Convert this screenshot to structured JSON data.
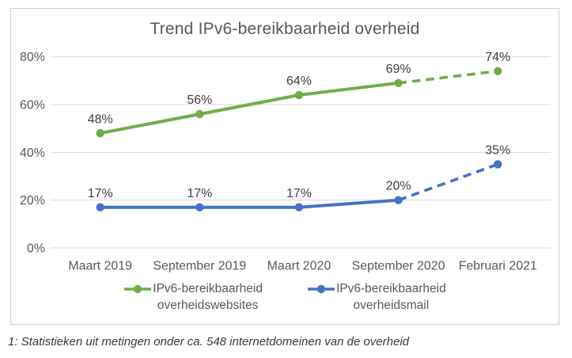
{
  "footnote": "1: Statistieken uit metingen onder ca. 548 internetdomeinen van de overheid",
  "colors": {
    "series_websites": "#70ad47",
    "series_mail": "#4472c4",
    "gridline": "#d9d9d9",
    "axis_text": "#595959",
    "data_label_text": "#404040",
    "chart_border": "#cfcfcf"
  },
  "chart_data": {
    "type": "line",
    "title": "Trend IPv6-bereikbaarheid overheid",
    "categories": [
      "Maart 2019",
      "September 2019",
      "Maart 2020",
      "September 2020",
      "Februari 2021"
    ],
    "series": [
      {
        "name": "IPv6-bereikbaarheid overheidswebsites",
        "slug": "overheidswebsites",
        "legend_lines": [
          "IPv6-bereikbaarheid",
          "overheidswebsites"
        ],
        "values": [
          48,
          56,
          64,
          69,
          74
        ],
        "data_labels": [
          "48%",
          "56%",
          "64%",
          "69%",
          "74%"
        ],
        "color": "#70ad47",
        "dashed_from_index": 3
      },
      {
        "name": "IPv6-bereikbaarheid overheidsmail",
        "slug": "overheidsmail",
        "legend_lines": [
          "IPv6-bereikbaarheid",
          "overheidsmail"
        ],
        "values": [
          17,
          17,
          17,
          20,
          35
        ],
        "data_labels": [
          "17%",
          "17%",
          "17%",
          "20%",
          "35%"
        ],
        "color": "#4472c4",
        "dashed_from_index": 3
      }
    ],
    "y_axis": {
      "tick_values": [
        0,
        20,
        40,
        60,
        80
      ],
      "tick_labels": [
        "0%",
        "20%",
        "40%",
        "60%",
        "80%"
      ],
      "ylim": [
        0,
        80
      ]
    },
    "grid": true,
    "legend_position": "bottom",
    "dashed_segment_note_range": "September 2020 – Februari 2021"
  }
}
